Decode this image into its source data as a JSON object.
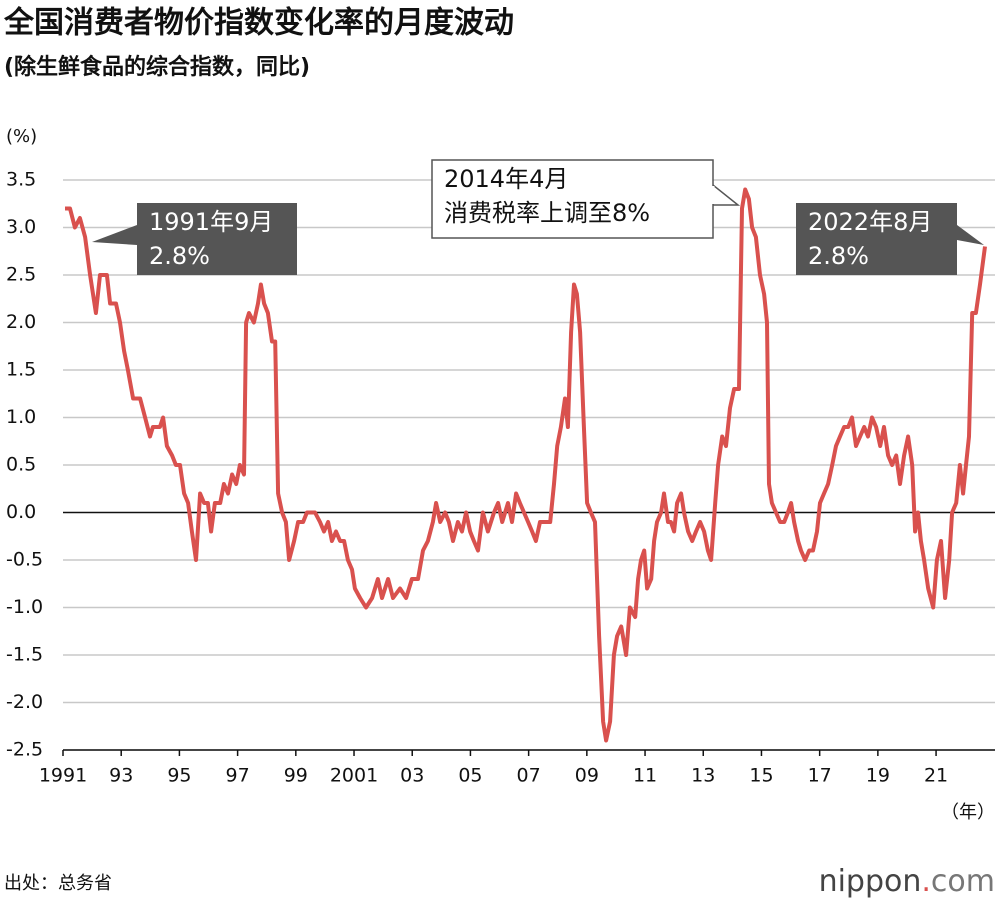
{
  "chart_data": {
    "type": "line",
    "title": "全国消费者物价指数变化率的月度波动",
    "subtitle": "(除生鲜食品的综合指数，同比)",
    "y_unit": "(%)",
    "x_unit": "（年）",
    "source": "出处：总务省",
    "logo": {
      "name": "nippon",
      "dot": ".",
      "domain": "com"
    },
    "color": "#d9514e",
    "grid": true,
    "xlim": [
      1991,
      2022.75
    ],
    "ylim": [
      -2.5,
      3.5
    ],
    "xticks": [
      1991,
      {
        "value": 1993,
        "label": "93"
      },
      {
        "value": 1995,
        "label": "95"
      },
      {
        "value": 1997,
        "label": "97"
      },
      {
        "value": 1999,
        "label": "99"
      },
      2001,
      {
        "value": 2003,
        "label": "03"
      },
      {
        "value": 2005,
        "label": "05"
      },
      {
        "value": 2007,
        "label": "07"
      },
      {
        "value": 2009,
        "label": "09"
      },
      {
        "value": 2011,
        "label": "11"
      },
      {
        "value": 2013,
        "label": "13"
      },
      {
        "value": 2015,
        "label": "15"
      },
      {
        "value": 2017,
        "label": "17"
      },
      {
        "value": 2019,
        "label": "19"
      },
      {
        "value": 2021,
        "label": "21"
      }
    ],
    "yticks": [
      3.5,
      {
        "value": 3,
        "label": "3.0"
      },
      2.5,
      {
        "value": 2,
        "label": "2.0"
      },
      1.5,
      {
        "value": 1,
        "label": "1.0"
      },
      0.5,
      {
        "value": 0,
        "label": "0.0"
      },
      -0.5,
      {
        "value": -1,
        "label": "-1.0"
      },
      -1.5,
      {
        "value": -2,
        "label": "-2.0"
      },
      -2.5
    ],
    "x": [
      1991.07,
      1991.24,
      1991.41,
      1991.58,
      1991.76,
      1991.93,
      1992.03,
      1992.13,
      1992.27,
      1992.51,
      1992.62,
      1992.82,
      1992.96,
      1993.1,
      1993.23,
      1993.41,
      1993.65,
      1993.82,
      1993.99,
      1994.09,
      1994.33,
      1994.44,
      1994.57,
      1994.75,
      1994.88,
      1995.02,
      1995.16,
      1995.3,
      1995.43,
      1995.57,
      1995.71,
      1995.85,
      1995.98,
      1996.09,
      1996.22,
      1996.4,
      1996.53,
      1996.67,
      1996.81,
      1996.95,
      1997.08,
      1997.22,
      1997.29,
      1997.39,
      1997.56,
      1997.7,
      1997.8,
      1997.91,
      1998.04,
      1998.18,
      1998.29,
      1998.39,
      1998.53,
      1998.66,
      1998.77,
      1998.94,
      1999.08,
      1999.25,
      1999.38,
      1999.66,
      1999.83,
      1999.97,
      2000.11,
      2000.24,
      2000.38,
      2000.52,
      2000.66,
      2000.79,
      2000.93,
      2001.03,
      2001.21,
      2001.41,
      2001.62,
      2001.82,
      2001.96,
      2002.17,
      2002.34,
      2002.58,
      2002.79,
      2002.99,
      2003.2,
      2003.37,
      2003.54,
      2003.71,
      2003.82,
      2003.96,
      2004.13,
      2004.26,
      2004.4,
      2004.57,
      2004.71,
      2004.85,
      2004.99,
      2005.12,
      2005.26,
      2005.43,
      2005.6,
      2005.81,
      2005.95,
      2006.09,
      2006.29,
      2006.43,
      2006.57,
      2006.7,
      2006.84,
      2006.98,
      2007.12,
      2007.25,
      2007.39,
      2007.74,
      2007.87,
      2007.98,
      2008.11,
      2008.25,
      2008.35,
      2008.46,
      2008.56,
      2008.66,
      2008.77,
      2008.9,
      2009.01,
      2009.14,
      2009.28,
      2009.42,
      2009.56,
      2009.66,
      2009.8,
      2009.93,
      2010.04,
      2010.18,
      2010.24,
      2010.35,
      2010.48,
      2010.66,
      2010.76,
      2010.86,
      2010.97,
      2011.07,
      2011.21,
      2011.31,
      2011.41,
      2011.55,
      2011.65,
      2011.79,
      2011.89,
      2012.0,
      2012.1,
      2012.24,
      2012.34,
      2012.48,
      2012.62,
      2012.75,
      2012.89,
      2013.03,
      2013.16,
      2013.27,
      2013.41,
      2013.51,
      2013.65,
      2013.78,
      2013.92,
      2014.06,
      2014.23,
      2014.33,
      2014.44,
      2014.57,
      2014.68,
      2014.81,
      2014.95,
      2015.09,
      2015.19,
      2015.26,
      2015.36,
      2015.5,
      2015.64,
      2015.78,
      2015.91,
      2016.02,
      2016.12,
      2016.26,
      2016.36,
      2016.5,
      2016.64,
      2016.77,
      2016.91,
      2017.01,
      2017.15,
      2017.29,
      2017.43,
      2017.56,
      2017.7,
      2017.84,
      2017.98,
      2018.11,
      2018.25,
      2018.39,
      2018.53,
      2018.66,
      2018.8,
      2018.94,
      2019.08,
      2019.21,
      2019.35,
      2019.49,
      2019.63,
      2019.76,
      2019.9,
      2020.04,
      2020.18,
      2020.28,
      2020.38,
      2020.48,
      2020.59,
      2020.73,
      2020.9,
      2021.03,
      2021.17,
      2021.31,
      2021.45,
      2021.55,
      2021.69,
      2021.82,
      2021.93,
      2022.03,
      2022.13,
      2022.24,
      2022.37,
      2022.51,
      2022.68
    ],
    "values": [
      3.2,
      3.2,
      3.0,
      3.1,
      2.9,
      2.5,
      2.3,
      2.1,
      2.5,
      2.5,
      2.2,
      2.2,
      2.0,
      1.7,
      1.5,
      1.2,
      1.2,
      1.0,
      0.8,
      0.9,
      0.9,
      1.0,
      0.7,
      0.6,
      0.5,
      0.5,
      0.2,
      0.1,
      -0.2,
      -0.5,
      0.2,
      0.1,
      0.1,
      -0.2,
      0.1,
      0.1,
      0.3,
      0.2,
      0.4,
      0.3,
      0.5,
      0.4,
      2.0,
      2.1,
      2.0,
      2.2,
      2.4,
      2.2,
      2.1,
      1.8,
      1.8,
      0.2,
      0.0,
      -0.1,
      -0.5,
      -0.3,
      -0.1,
      -0.1,
      0.0,
      0.0,
      -0.1,
      -0.2,
      -0.1,
      -0.3,
      -0.2,
      -0.3,
      -0.3,
      -0.5,
      -0.6,
      -0.8,
      -0.9,
      -1.0,
      -0.9,
      -0.7,
      -0.9,
      -0.7,
      -0.9,
      -0.8,
      -0.9,
      -0.7,
      -0.7,
      -0.4,
      -0.3,
      -0.1,
      0.1,
      -0.1,
      0.0,
      -0.1,
      -0.3,
      -0.1,
      -0.2,
      0.0,
      -0.2,
      -0.3,
      -0.4,
      0.0,
      -0.2,
      0.0,
      0.1,
      -0.1,
      0.1,
      -0.1,
      0.2,
      0.1,
      0.0,
      -0.1,
      -0.2,
      -0.3,
      -0.1,
      -0.1,
      0.3,
      0.7,
      0.9,
      1.2,
      0.9,
      1.9,
      2.4,
      2.3,
      1.9,
      0.9,
      0.1,
      0.0,
      -0.1,
      -1.3,
      -2.2,
      -2.4,
      -2.2,
      -1.5,
      -1.3,
      -1.2,
      -1.3,
      -1.5,
      -1.0,
      -1.1,
      -0.7,
      -0.5,
      -0.4,
      -0.8,
      -0.7,
      -0.3,
      -0.1,
      0.0,
      0.2,
      -0.1,
      -0.1,
      -0.2,
      0.1,
      0.2,
      0.0,
      -0.2,
      -0.3,
      -0.2,
      -0.1,
      -0.2,
      -0.4,
      -0.5,
      0.1,
      0.5,
      0.8,
      0.7,
      1.1,
      1.3,
      1.3,
      3.2,
      3.4,
      3.3,
      3.0,
      2.9,
      2.5,
      2.3,
      2.0,
      0.3,
      0.1,
      0.0,
      -0.1,
      -0.1,
      0.0,
      0.1,
      -0.1,
      -0.3,
      -0.4,
      -0.5,
      -0.4,
      -0.4,
      -0.2,
      0.1,
      0.2,
      0.3,
      0.5,
      0.7,
      0.8,
      0.9,
      0.9,
      1.0,
      0.7,
      0.8,
      0.9,
      0.8,
      1.0,
      0.9,
      0.7,
      0.9,
      0.6,
      0.5,
      0.6,
      0.3,
      0.6,
      0.8,
      0.5,
      -0.2,
      0.0,
      -0.3,
      -0.5,
      -0.8,
      -1.0,
      -0.5,
      -0.3,
      -0.9,
      -0.5,
      0.0,
      0.1,
      0.5,
      0.2,
      0.5,
      0.8,
      2.1,
      2.1,
      2.4,
      2.8
    ],
    "annotations": [
      {
        "lines": [
          "1991年9月",
          "2.8%"
        ]
      },
      {
        "lines": [
          "2014年4月",
          "消费税率上调至8%"
        ]
      },
      {
        "lines": [
          "2022年8月",
          "2.8%"
        ]
      }
    ]
  }
}
